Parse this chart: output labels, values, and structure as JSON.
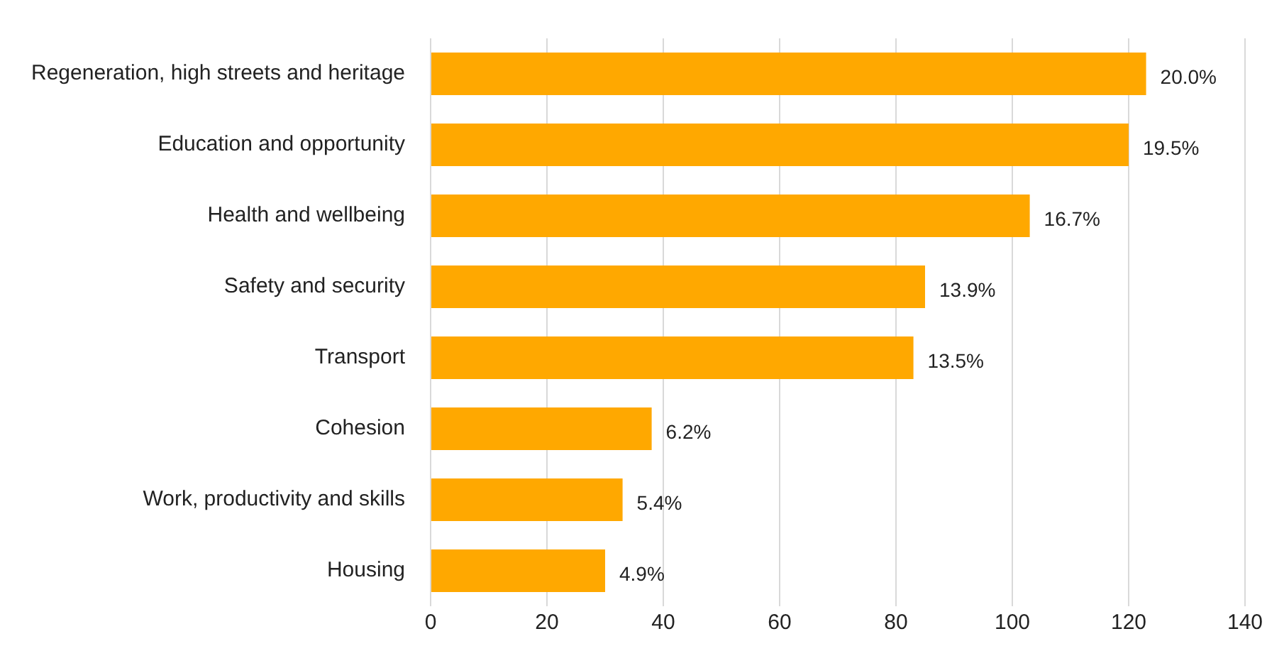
{
  "chart_data": {
    "type": "bar",
    "orientation": "horizontal",
    "categories": [
      "Regeneration, high streets and heritage",
      "Education and opportunity",
      "Health and wellbeing",
      "Safety and security",
      "Transport",
      "Cohesion",
      "Work, productivity and skills",
      "Housing"
    ],
    "values": [
      123,
      120,
      103,
      85,
      83,
      38,
      33,
      30
    ],
    "annotations": [
      {
        "text": "20.0%",
        "x": 123,
        "y": "Regeneration, high streets and heritage"
      },
      {
        "text": "19.5%",
        "x": 120,
        "y": "Education and opportunity"
      },
      {
        "text": "16.7%",
        "x": 103,
        "y": "Health and wellbeing"
      },
      {
        "text": "13.9%",
        "x": 85,
        "y": "Safety and security"
      },
      {
        "text": "13.5%",
        "x": 83,
        "y": "Transport"
      },
      {
        "text": "6.2%",
        "x": 38,
        "y": "Cohesion"
      },
      {
        "text": "5.4%",
        "x": 33,
        "y": "Work, productivity and skills"
      },
      {
        "text": "4.9%",
        "x": 30,
        "y": "Housing"
      }
    ],
    "color": "#ffa800",
    "xlim": [
      0,
      140
    ],
    "xticks": [
      0,
      20,
      40,
      60,
      80,
      100,
      120,
      140
    ],
    "grid": "x",
    "legend": false
  }
}
